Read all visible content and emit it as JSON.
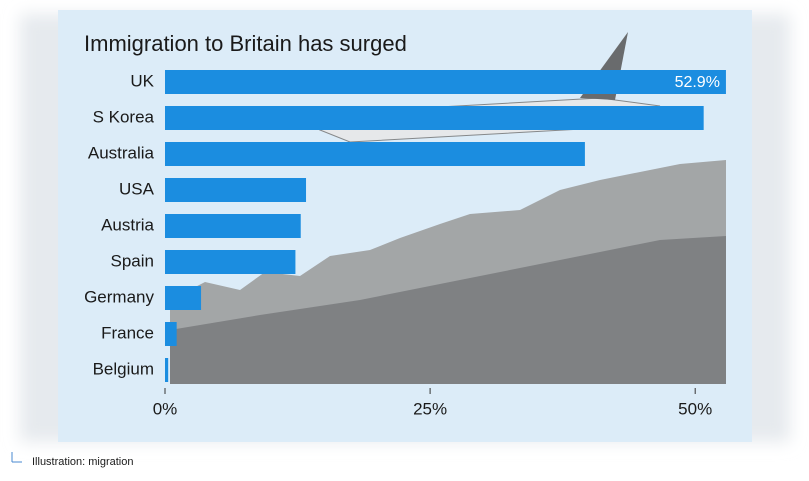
{
  "chart_data": {
    "type": "hbar",
    "title": "Immigration to Britain has surged",
    "categories": [
      "UK",
      "S Korea",
      "Australia",
      "USA",
      "Austria",
      "Spain",
      "Germany",
      "France",
      "Belgium"
    ],
    "values": [
      52.9,
      50.8,
      39.6,
      13.3,
      12.8,
      12.3,
      3.4,
      1.1,
      0.3
    ],
    "value_labels": [
      "52.9%",
      null,
      null,
      null,
      null,
      null,
      null,
      null,
      null
    ],
    "color": "#1b8de0",
    "xlim": [
      0,
      53
    ],
    "xticks": [
      {
        "value": 0,
        "label": "0%"
      },
      {
        "value": 25,
        "label": "25%"
      },
      {
        "value": 50,
        "label": "50%"
      }
    ],
    "caption": "Illustration: migration"
  }
}
